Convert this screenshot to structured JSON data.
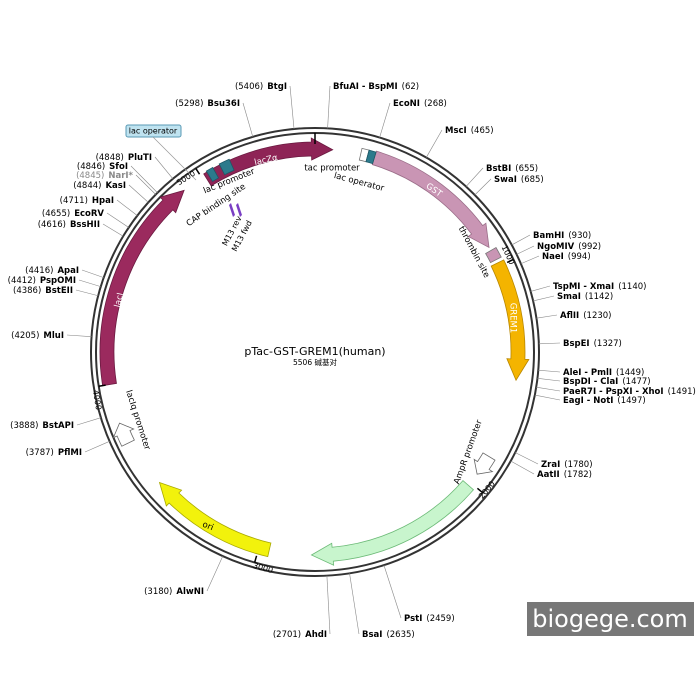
{
  "title": "pTac-GST-GREM1(human)",
  "size": "5506 碱基对",
  "sites": [
    {
      "name": "BtgI",
      "position": "(5406)"
    },
    {
      "name": "Bsu36I",
      "position": "(5298)"
    },
    {
      "name": "BfuAI - BspMI",
      "position": "(62)"
    },
    {
      "name": "EcoNI",
      "position": "(268)"
    },
    {
      "name": "MscI",
      "position": "(465)"
    },
    {
      "name": "BstBI",
      "position": "(655)"
    },
    {
      "name": "SwaI",
      "position": "(685)"
    },
    {
      "name": "BamHI",
      "position": "(930)"
    },
    {
      "name": "NgoMIV",
      "position": "(992)"
    },
    {
      "name": "NaeI",
      "position": "(994)"
    },
    {
      "name": "TspMI - XmaI",
      "position": "(1140)"
    },
    {
      "name": "SmaI",
      "position": "(1142)"
    },
    {
      "name": "AflII",
      "position": "(1230)"
    },
    {
      "name": "BspEI",
      "position": "(1327)"
    },
    {
      "name": "AleI - PmlI",
      "position": "(1449)"
    },
    {
      "name": "BspDI - ClaI",
      "position": "(1477)"
    },
    {
      "name": "PaeR7I - PspXI - XhoI",
      "position": "(1491)"
    },
    {
      "name": "EagI - NotI",
      "position": "(1497)"
    },
    {
      "name": "ZraI",
      "position": "(1780)"
    },
    {
      "name": "AatII",
      "position": "(1782)"
    },
    {
      "name": "PstI",
      "position": "(2459)"
    },
    {
      "name": "BsaI",
      "position": "(2635)"
    },
    {
      "name": "AhdI",
      "position": "(2701)"
    },
    {
      "name": "AlwNI",
      "position": "(3180)"
    },
    {
      "name": "PflMI",
      "position": "(3787)"
    },
    {
      "name": "BstAPI",
      "position": "(3888)"
    },
    {
      "name": "MluI",
      "position": "(4205)"
    },
    {
      "name": "BstEII",
      "position": "(4386)"
    },
    {
      "name": "PspOMI",
      "position": "(4412)"
    },
    {
      "name": "ApaI",
      "position": "(4416)"
    },
    {
      "name": "BssHII",
      "position": "(4616)"
    },
    {
      "name": "EcoRV",
      "position": "(4655)"
    },
    {
      "name": "HpaI",
      "position": "(4711)"
    },
    {
      "name": "KasI",
      "position": "(4844)"
    },
    {
      "name": "NarI*",
      "position": "(4845)"
    },
    {
      "name": "SfoI",
      "position": "(4846)"
    },
    {
      "name": "PluTI",
      "position": "(4848)"
    }
  ],
  "features": [
    "lacZα",
    "GST",
    "GREM1",
    "lacI",
    "AmpR",
    "ori",
    "lac promoter",
    "CAP binding site",
    "tac promoter",
    "lac operator",
    "thrombin site",
    "AmpR promoter",
    "lacIq promoter",
    "M13 rev",
    "M13 fwd"
  ],
  "ruler": [
    "1000",
    "2000",
    "3000",
    "4000",
    "5000"
  ],
  "callout": "lac operator",
  "watermark": "biogege.com"
}
